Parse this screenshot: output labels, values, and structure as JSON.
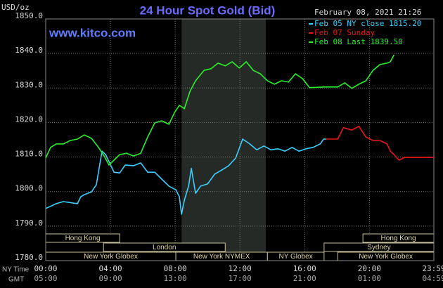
{
  "chart_data": {
    "type": "line",
    "title": "24 Hour Spot Gold (Bid)",
    "watermark": "www.kitco.com",
    "timestamp": "February 08, 2021 21:26",
    "ylabel": "USD/oz",
    "xlabel": "NY Time",
    "x2label": "GMT",
    "xlim": [
      0,
      23.983
    ],
    "ylim": [
      1780,
      1850
    ],
    "grid": true,
    "legend": "upper right",
    "highlight_span": [
      8.4,
      13.6
    ],
    "yticks": [
      {
        "value": 1780,
        "label": "1780.0"
      },
      {
        "value": 1790,
        "label": "1790.0"
      },
      {
        "value": 1800,
        "label": "1800.0"
      },
      {
        "value": 1810,
        "label": "1810.0"
      },
      {
        "value": 1820,
        "label": "1820.0"
      },
      {
        "value": 1830,
        "label": "1830.0"
      },
      {
        "value": 1840,
        "label": "1840.0"
      },
      {
        "value": 1850,
        "label": "1850.0"
      }
    ],
    "xticks": [
      {
        "value": 0,
        "label": "00:00"
      },
      {
        "value": 4,
        "label": "04:00"
      },
      {
        "value": 8,
        "label": "08:00"
      },
      {
        "value": 12,
        "label": "12:00"
      },
      {
        "value": 16,
        "label": "16:00"
      },
      {
        "value": 20,
        "label": "20:00"
      },
      {
        "value": 23.983,
        "label": "23:59"
      }
    ],
    "x2ticks": [
      {
        "value": 0,
        "label": "05:00"
      },
      {
        "value": 4,
        "label": "09:00"
      },
      {
        "value": 8,
        "label": "13:00"
      },
      {
        "value": 12,
        "label": "17:00"
      },
      {
        "value": 16,
        "label": "21:00"
      },
      {
        "value": 20,
        "label": "01:00"
      },
      {
        "value": 23.983,
        "label": "04:59"
      }
    ],
    "sessions": [
      {
        "name": "Hong Kong",
        "start": 0,
        "end": 4.57
      },
      {
        "name": "London",
        "start": 3.57,
        "end": 11.09
      },
      {
        "name": "New York Globex",
        "start": 0,
        "end": 8.04
      },
      {
        "name": "New York NYMEX",
        "start": 8.04,
        "end": 13.7
      },
      {
        "name": "NY Globex",
        "start": 13.7,
        "end": 17.2
      },
      {
        "name": "Hong Kong",
        "start": 19.6,
        "end": 23.983
      },
      {
        "name": "Sydney",
        "start": 17.2,
        "end": 23.983
      },
      {
        "name": "New York Globex",
        "start": 18.04,
        "end": 23.983
      }
    ],
    "series": [
      {
        "name": "Feb 05 NY close 1815.20",
        "color": "#38d0ff",
        "x": [
          0,
          0.65,
          1.09,
          1.96,
          2.17,
          2.39,
          2.83,
          3.13,
          3.26,
          3.48,
          3.7,
          3.91,
          4.22,
          4.57,
          4.91,
          5.43,
          5.87,
          6.3,
          6.74,
          7.17,
          7.61,
          8.04,
          8.26,
          8.39,
          8.57,
          8.83,
          9.0,
          9.26,
          9.57,
          10.0,
          10.43,
          10.87,
          11.3,
          11.74,
          12.17,
          12.61,
          13.04,
          13.48,
          13.91,
          14.35,
          14.78,
          15.22,
          15.65,
          16.09,
          16.52,
          16.96,
          17.17,
          17.35
        ],
        "values": [
          1795.1,
          1796.5,
          1797.1,
          1796.5,
          1798.5,
          1799.1,
          1799.9,
          1802.0,
          1805.6,
          1811.7,
          1810.7,
          1808.7,
          1805.6,
          1805.4,
          1807.7,
          1807.5,
          1808.3,
          1805.6,
          1805.6,
          1803.6,
          1801.6,
          1800.5,
          1798.5,
          1793.4,
          1797.5,
          1801.6,
          1806.7,
          1799.5,
          1801.6,
          1802.2,
          1805.0,
          1806.2,
          1807.5,
          1809.7,
          1815.2,
          1813.8,
          1812.1,
          1813.2,
          1812.1,
          1812.4,
          1811.7,
          1812.8,
          1811.7,
          1812.4,
          1812.8,
          1813.8,
          1815.2,
          1815.2
        ]
      },
      {
        "name": "Feb 07 Sunday",
        "color": "#e81818",
        "x": [
          17.35,
          18.04,
          18.39,
          18.91,
          19.35,
          19.78,
          20.22,
          20.65,
          21.09,
          21.3,
          21.52,
          21.83,
          22.17,
          22.83,
          23.98
        ],
        "values": [
          1815.2,
          1815.2,
          1818.5,
          1817.8,
          1818.9,
          1815.8,
          1814.8,
          1814.8,
          1813.8,
          1811.7,
          1810.7,
          1809.1,
          1809.9,
          1809.9,
          1809.9
        ]
      },
      {
        "name": "Feb 08 Last 1839.50",
        "color": "#28f028",
        "x": [
          0,
          0.3,
          0.65,
          1.09,
          1.52,
          1.96,
          2.39,
          2.83,
          3.26,
          3.61,
          3.91,
          4.22,
          4.57,
          5.0,
          5.43,
          5.87,
          6.3,
          6.74,
          7.17,
          7.61,
          7.96,
          8.26,
          8.57,
          8.91,
          9.26,
          9.78,
          10.22,
          10.65,
          11.09,
          11.52,
          11.96,
          12.39,
          12.83,
          13.26,
          13.7,
          14.13,
          14.57,
          15.0,
          15.43,
          15.87,
          16.3,
          17.17,
          18.04,
          18.48,
          18.91,
          19.35,
          19.78,
          20.22,
          20.65,
          21.09,
          21.3,
          21.52
        ],
        "values": [
          1809.7,
          1812.8,
          1813.8,
          1813.8,
          1814.8,
          1815.2,
          1816.4,
          1815.4,
          1812.8,
          1810.3,
          1807.7,
          1809.1,
          1810.7,
          1811.1,
          1810.3,
          1811.1,
          1815.8,
          1819.9,
          1820.5,
          1819.5,
          1822.9,
          1825.0,
          1824.0,
          1829.0,
          1832.1,
          1835.1,
          1835.6,
          1837.2,
          1836.4,
          1837.6,
          1835.8,
          1837.6,
          1835.1,
          1834.1,
          1832.1,
          1831.1,
          1832.1,
          1831.7,
          1834.1,
          1832.7,
          1830.1,
          1830.3,
          1830.3,
          1831.5,
          1829.9,
          1831.1,
          1832.1,
          1835.1,
          1836.8,
          1837.2,
          1837.6,
          1839.6
        ]
      }
    ]
  }
}
